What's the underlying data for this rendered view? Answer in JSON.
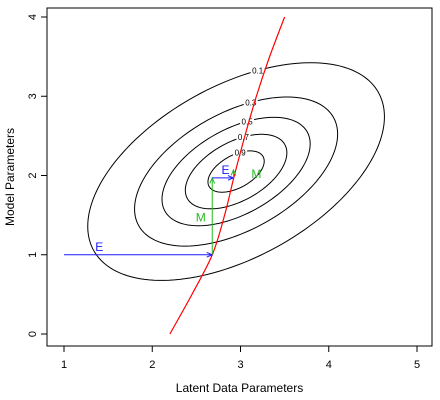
{
  "chart_data": {
    "type": "contour",
    "xlabel": "Latent Data Parameters",
    "ylabel": "Model Parameters",
    "xlim": [
      1,
      5
    ],
    "ylim": [
      0,
      4
    ],
    "x_ticks": [
      "1",
      "2",
      "3",
      "4",
      "5"
    ],
    "y_ticks": [
      "0",
      "1",
      "2",
      "3",
      "4"
    ],
    "grid": false,
    "contours": {
      "center": [
        2.95,
        2.05
      ],
      "tilt_degrees": 34,
      "levels": [
        {
          "label": "0.9",
          "a": 0.36,
          "b": 0.2
        },
        {
          "label": "0.7",
          "a": 0.65,
          "b": 0.36
        },
        {
          "label": "0.5",
          "a": 0.95,
          "b": 0.52
        },
        {
          "label": "0.3",
          "a": 1.3,
          "b": 0.72
        },
        {
          "label": "0.1",
          "a": 1.9,
          "b": 1.05
        }
      ]
    },
    "red_curve": {
      "color": "#ff0000",
      "points": [
        [
          2.2,
          0.0
        ],
        [
          2.45,
          0.5
        ],
        [
          2.68,
          1.0
        ],
        [
          2.82,
          1.5
        ],
        [
          2.93,
          2.0
        ],
        [
          3.05,
          2.5
        ],
        [
          3.18,
          3.0
        ],
        [
          3.33,
          3.5
        ],
        [
          3.5,
          4.0
        ]
      ]
    },
    "em_path": {
      "steps": [
        {
          "type": "E",
          "label": "E",
          "from": [
            1.0,
            1.0
          ],
          "to": [
            2.68,
            1.0
          ],
          "color": "#1a1aff"
        },
        {
          "type": "M",
          "label": "M",
          "from": [
            2.68,
            1.0
          ],
          "to": [
            2.68,
            1.97
          ],
          "color": "#22bb22"
        },
        {
          "type": "E",
          "label": "E",
          "from": [
            2.68,
            1.97
          ],
          "to": [
            2.92,
            1.97
          ],
          "color": "#1a1aff"
        },
        {
          "type": "M",
          "label": "M",
          "from": [
            2.92,
            1.97
          ],
          "to": [
            2.92,
            2.07
          ],
          "color": "#22bb22"
        }
      ]
    }
  }
}
